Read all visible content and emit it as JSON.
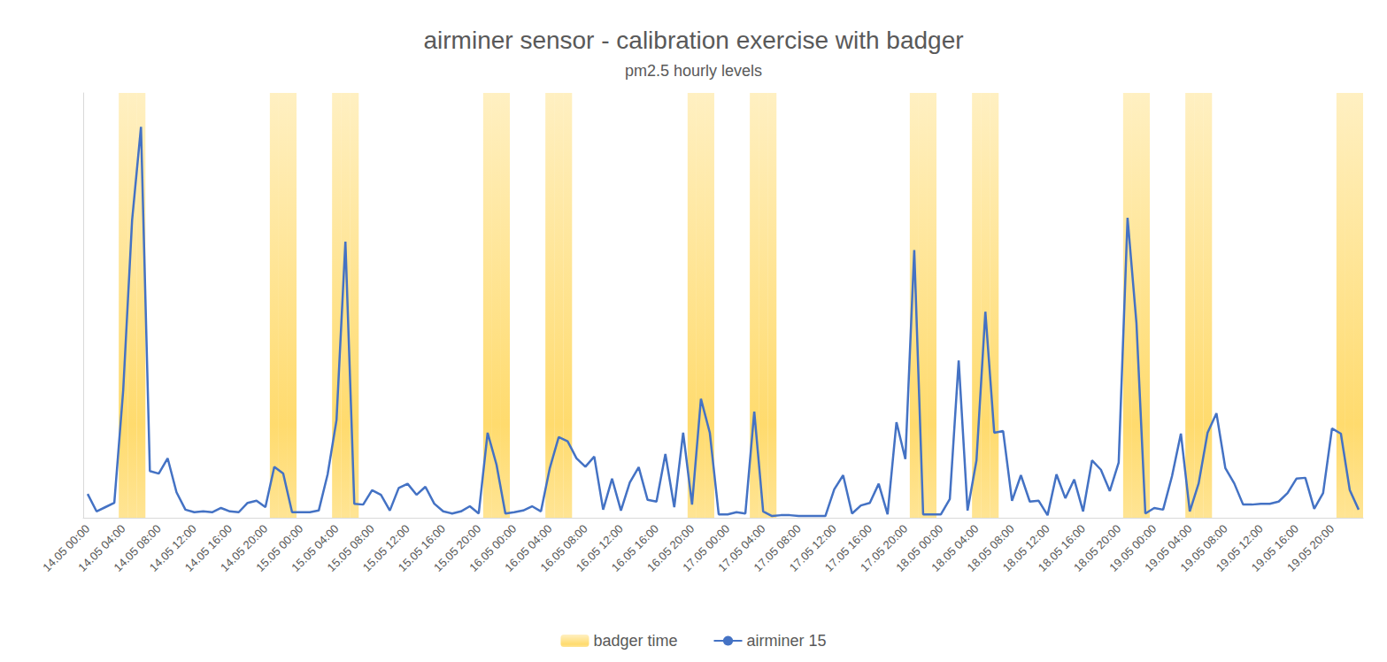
{
  "chart_data": {
    "type": "line",
    "title": "airminer sensor - calibration exercise with badger",
    "subtitle": "pm2.5 hourly levels",
    "categories": [
      "14.05 00:00",
      null,
      null,
      null,
      "14.05 04:00",
      null,
      null,
      null,
      "14.05 08:00",
      null,
      null,
      null,
      "14.05 12:00",
      null,
      null,
      null,
      "14.05 16:00",
      null,
      null,
      null,
      "14.05 20:00",
      null,
      null,
      null,
      "15.05 00:00",
      null,
      null,
      null,
      "15.05 04:00",
      null,
      null,
      null,
      "15.05 08:00",
      null,
      null,
      null,
      "15.05 12:00",
      null,
      null,
      null,
      "15.05 16:00",
      null,
      null,
      null,
      "15.05 20:00",
      null,
      null,
      null,
      "16.05 00:00",
      null,
      null,
      null,
      "16.05 04:00",
      null,
      null,
      null,
      "16.05 08:00",
      null,
      null,
      null,
      "16.05 12:00",
      null,
      null,
      null,
      "16.05 16:00",
      null,
      null,
      null,
      "16.05 20:00",
      null,
      null,
      null,
      "17.05 00:00",
      null,
      null,
      null,
      "17.05 04:00",
      null,
      null,
      null,
      "17.05 08:00",
      null,
      null,
      null,
      "17.05 12:00",
      null,
      null,
      null,
      "17.05 16:00",
      null,
      null,
      null,
      "17.05 20:00",
      null,
      null,
      null,
      "18.05 00:00",
      null,
      null,
      null,
      "18.05 04:00",
      null,
      null,
      null,
      "18.05 08:00",
      null,
      null,
      null,
      "18.05 12:00",
      null,
      null,
      null,
      "18.05 16:00",
      null,
      null,
      null,
      "18.05 20:00",
      null,
      null,
      null,
      "19.05 00:00",
      null,
      null,
      null,
      "19.05 04:00",
      null,
      null,
      null,
      "19.05 08:00",
      null,
      null,
      null,
      "19.05 12:00",
      null,
      null,
      null,
      "19.05 16:00",
      null,
      null,
      null,
      "19.05 20:00",
      null,
      null,
      null
    ],
    "series": [
      {
        "name": "badger time",
        "type": "bar",
        "color": "#ffd966",
        "values": [
          null,
          null,
          null,
          null,
          100,
          100,
          100,
          null,
          null,
          null,
          null,
          null,
          null,
          null,
          null,
          null,
          null,
          null,
          null,
          null,
          null,
          100,
          100,
          100,
          null,
          null,
          null,
          null,
          100,
          100,
          100,
          null,
          null,
          null,
          null,
          null,
          null,
          null,
          null,
          null,
          null,
          null,
          null,
          null,
          null,
          100,
          100,
          100,
          null,
          null,
          null,
          null,
          100,
          100,
          100,
          null,
          null,
          null,
          null,
          null,
          null,
          null,
          null,
          null,
          null,
          null,
          null,
          null,
          100,
          100,
          100,
          null,
          null,
          null,
          null,
          100,
          100,
          100,
          null,
          null,
          null,
          null,
          null,
          null,
          null,
          null,
          null,
          null,
          null,
          null,
          null,
          null,
          null,
          100,
          100,
          100,
          null,
          null,
          null,
          null,
          100,
          100,
          100,
          null,
          null,
          null,
          null,
          null,
          null,
          null,
          null,
          null,
          null,
          null,
          null,
          null,
          null,
          100,
          100,
          100,
          null,
          null,
          null,
          null,
          100,
          100,
          100,
          null,
          null,
          null,
          null,
          null,
          null,
          null,
          null,
          null,
          null,
          null,
          null,
          null,
          null,
          100,
          100,
          100
        ]
      },
      {
        "name": "airminer 15",
        "type": "line",
        "color": "#4472c4",
        "values": [
          5.6,
          1.5,
          2.5,
          3.5,
          30,
          70,
          92,
          11,
          10.4,
          14,
          6,
          1.9,
          1.3,
          1.5,
          1.3,
          2.3,
          1.5,
          1.3,
          3.5,
          4,
          2.5,
          12,
          10.4,
          1.3,
          1.3,
          1.3,
          1.7,
          10.2,
          23,
          65,
          3.3,
          3.1,
          6.5,
          5.4,
          1.7,
          7,
          8,
          5.4,
          7.3,
          3.3,
          1.5,
          1,
          1.5,
          2.7,
          1,
          20,
          12.5,
          1,
          1.3,
          1.7,
          2.7,
          1.5,
          11.7,
          19,
          18,
          14,
          12,
          14.4,
          1.9,
          9.2,
          1.7,
          8.3,
          11.9,
          4.2,
          3.8,
          15,
          2.5,
          20,
          3.1,
          28,
          20,
          0.8,
          0.8,
          1.3,
          1,
          25,
          1.5,
          0.4,
          0.6,
          0.6,
          0.4,
          0.4,
          0.4,
          0.4,
          6.7,
          10,
          1,
          2.9,
          3.5,
          8,
          0.8,
          22.5,
          13.8,
          63,
          0.8,
          0.8,
          0.8,
          4.4,
          37,
          1.7,
          13.5,
          48.5,
          20,
          20.4,
          4,
          10,
          3.8,
          4,
          0.6,
          10.2,
          4.6,
          9,
          1.5,
          13.5,
          11.3,
          6.3,
          13,
          70.6,
          45.8,
          1,
          2.3,
          1.9,
          9.8,
          19.8,
          1.5,
          8.1,
          20,
          24.6,
          11.7,
          8.1,
          3.1,
          3.1,
          3.3,
          3.3,
          3.8,
          5.8,
          9.2,
          9.4,
          2.1,
          5.8,
          21,
          19.8,
          6.5,
          1.9
        ]
      }
    ],
    "ylim": [
      0,
      100
    ],
    "grid": false,
    "legend": "bottom",
    "tick_labels": "x"
  }
}
